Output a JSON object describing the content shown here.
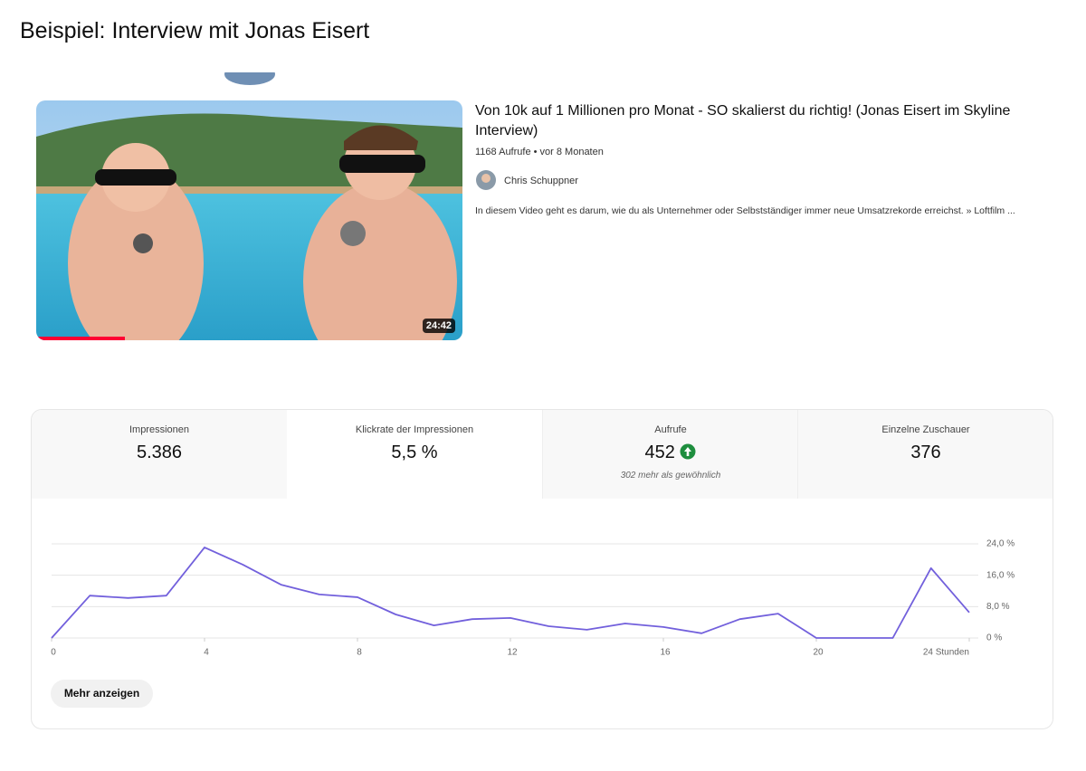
{
  "header": {
    "title": "Beispiel: Interview mit Jonas Eisert"
  },
  "video": {
    "title": "Von 10k auf 1 Millionen pro Monat - SO skalierst du richtig! (Jonas Eisert im Skyline Interview)",
    "meta": "1168 Aufrufe • vor 8 Monaten",
    "channel": "Chris Schuppner",
    "description": "In diesem Video geht es darum, wie du als Unternehmer oder Selbstständiger immer neue Umsatzrekorde erreichst. » Loftfilm ...",
    "duration": "24:42"
  },
  "metrics": [
    {
      "label": "Impressionen",
      "value": "5.386"
    },
    {
      "label": "Klickrate der Impressionen",
      "value": "5,5 %"
    },
    {
      "label": "Aufrufe",
      "value": "452",
      "note": "302 mehr als gewöhnlich"
    },
    {
      "label": "Einzelne Zuschauer",
      "value": "376"
    }
  ],
  "button": "Mehr anzeigen",
  "chart_data": {
    "type": "line",
    "x": [
      0,
      1,
      2,
      3,
      4,
      5,
      6,
      7,
      8,
      9,
      10,
      11,
      12,
      13,
      14,
      15,
      16,
      17,
      18,
      19,
      20,
      21,
      22,
      23,
      24
    ],
    "values": [
      0,
      10.8,
      10.2,
      10.8,
      23.1,
      18.7,
      13.6,
      11.1,
      10.4,
      6.0,
      3.2,
      4.8,
      5.1,
      3.0,
      2.1,
      3.7,
      2.8,
      1.2,
      4.8,
      6.2,
      0,
      0,
      0,
      17.8,
      6.5
    ],
    "color": "#7260dc",
    "xlim": [
      0,
      24
    ],
    "xticks": [
      0,
      4,
      8,
      12,
      16,
      20,
      {
        "value": 24,
        "label": "24 Stunden"
      }
    ],
    "ylim": [
      0,
      24
    ],
    "yticks": [
      {
        "value": 0,
        "label": "0 %"
      },
      {
        "value": 8,
        "label": "8,0 %"
      },
      {
        "value": 16,
        "label": "16,0 %"
      },
      {
        "value": 24,
        "label": "24,0 %"
      }
    ],
    "grid": true
  }
}
